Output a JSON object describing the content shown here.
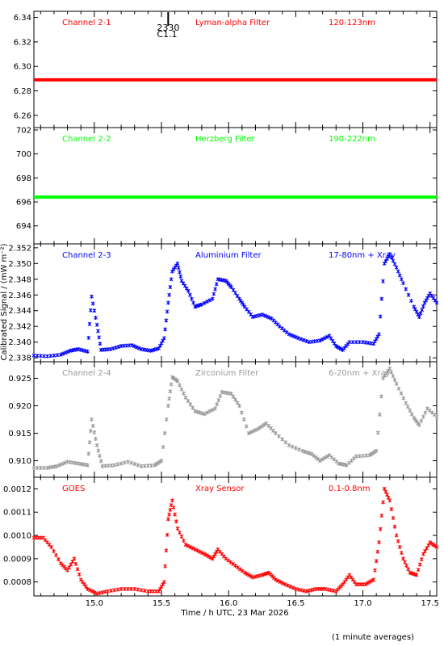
{
  "figure": {
    "ylabel": "Calibrated Signal / (mW m⁻²)",
    "xlabel": "Time / h UTC, 23 Mar 2026",
    "footnote": "(1 minute averages)",
    "annotation": {
      "line1": "2330",
      "line2": "C1.1",
      "x": 15.55
    }
  },
  "chart_data": [
    {
      "type": "scatter",
      "channel": "Channel 2-1",
      "filter": "Lyman-alpha Filter",
      "band": "120-123nm",
      "color": "#ff0000",
      "xlim": [
        14.55,
        17.55
      ],
      "ylim": [
        6.25,
        6.345
      ],
      "yticks": [
        "6.26",
        "6.28",
        "6.30",
        "6.32",
        "6.34"
      ],
      "xticks": [],
      "points": [
        [
          14.55,
          6.289
        ],
        [
          17.55,
          6.289
        ]
      ],
      "constant": true
    },
    {
      "type": "scatter",
      "channel": "Channel 2-2",
      "filter": "Herzberg Filter",
      "band": "190-222nm",
      "color": "#00ff00",
      "xlim": [
        14.55,
        17.55
      ],
      "ylim": [
        692.5,
        702.2
      ],
      "yticks": [
        "694",
        "696",
        "698",
        "700",
        "702"
      ],
      "xticks": [],
      "points": [
        [
          14.55,
          696.4
        ],
        [
          17.55,
          696.4
        ]
      ],
      "constant": true
    },
    {
      "type": "scatter",
      "channel": "Channel 2-3",
      "filter": "Aluminium Filter",
      "band": "17-80nm + Xray",
      "color": "#0000ff",
      "xlim": [
        14.55,
        17.55
      ],
      "ylim": [
        2.3375,
        2.3525
      ],
      "yticks": [
        "2.338",
        "2.340",
        "2.342",
        "2.344",
        "2.346",
        "2.348",
        "2.350",
        "2.352"
      ],
      "xticks": [],
      "points": [
        [
          14.55,
          2.3383
        ],
        [
          14.65,
          2.3382
        ],
        [
          14.75,
          2.3384
        ],
        [
          14.82,
          2.3389
        ],
        [
          14.88,
          2.3391
        ],
        [
          14.95,
          2.3388
        ],
        [
          14.98,
          2.3458
        ],
        [
          15.02,
          2.3422
        ],
        [
          15.05,
          2.339
        ],
        [
          15.12,
          2.3391
        ],
        [
          15.2,
          2.3395
        ],
        [
          15.28,
          2.3396
        ],
        [
          15.35,
          2.3391
        ],
        [
          15.42,
          2.3389
        ],
        [
          15.48,
          2.3392
        ],
        [
          15.52,
          2.3405
        ],
        [
          15.55,
          2.345
        ],
        [
          15.58,
          2.349
        ],
        [
          15.62,
          2.35
        ],
        [
          15.65,
          2.3478
        ],
        [
          15.7,
          2.3465
        ],
        [
          15.75,
          2.3445
        ],
        [
          15.8,
          2.3448
        ],
        [
          15.88,
          2.3455
        ],
        [
          15.92,
          2.348
        ],
        [
          15.98,
          2.3478
        ],
        [
          16.02,
          2.347
        ],
        [
          16.08,
          2.3455
        ],
        [
          16.12,
          2.3445
        ],
        [
          16.18,
          2.3432
        ],
        [
          16.25,
          2.3435
        ],
        [
          16.32,
          2.343
        ],
        [
          16.38,
          2.342
        ],
        [
          16.45,
          2.341
        ],
        [
          16.52,
          2.3405
        ],
        [
          16.6,
          2.34
        ],
        [
          16.68,
          2.3402
        ],
        [
          16.75,
          2.3408
        ],
        [
          16.8,
          2.3395
        ],
        [
          16.85,
          2.339
        ],
        [
          16.9,
          2.34
        ],
        [
          17.0,
          2.34
        ],
        [
          17.08,
          2.3398
        ],
        [
          17.12,
          2.341
        ],
        [
          17.16,
          2.35
        ],
        [
          17.2,
          2.3512
        ],
        [
          17.25,
          2.3495
        ],
        [
          17.3,
          2.3475
        ],
        [
          17.38,
          2.3445
        ],
        [
          17.42,
          2.3432
        ],
        [
          17.46,
          2.345
        ],
        [
          17.5,
          2.3462
        ],
        [
          17.55,
          2.345
        ]
      ]
    },
    {
      "type": "scatter",
      "channel": "Channel 2-4",
      "filter": "Zirconium Filter",
      "band": "6-20nm + Xray",
      "color": "#999999",
      "xlim": [
        14.55,
        17.55
      ],
      "ylim": [
        0.907,
        0.928
      ],
      "yticks": [
        "0.910",
        "0.915",
        "0.920",
        "0.925"
      ],
      "xticks": [],
      "points": [
        [
          14.55,
          0.9087
        ],
        [
          14.65,
          0.9087
        ],
        [
          14.72,
          0.909
        ],
        [
          14.8,
          0.9098
        ],
        [
          14.88,
          0.9095
        ],
        [
          14.95,
          0.9092
        ],
        [
          14.98,
          0.9175
        ],
        [
          15.02,
          0.9128
        ],
        [
          15.06,
          0.909
        ],
        [
          15.15,
          0.9092
        ],
        [
          15.25,
          0.9098
        ],
        [
          15.35,
          0.909
        ],
        [
          15.45,
          0.9092
        ],
        [
          15.5,
          0.91
        ],
        [
          15.55,
          0.92
        ],
        [
          15.58,
          0.9252
        ],
        [
          15.62,
          0.9245
        ],
        [
          15.68,
          0.9215
        ],
        [
          15.75,
          0.919
        ],
        [
          15.82,
          0.9185
        ],
        [
          15.9,
          0.9195
        ],
        [
          15.95,
          0.9225
        ],
        [
          16.02,
          0.9222
        ],
        [
          16.08,
          0.92
        ],
        [
          16.15,
          0.915
        ],
        [
          16.22,
          0.9158
        ],
        [
          16.28,
          0.9168
        ],
        [
          16.35,
          0.915
        ],
        [
          16.45,
          0.9128
        ],
        [
          16.55,
          0.9118
        ],
        [
          16.62,
          0.9112
        ],
        [
          16.68,
          0.91
        ],
        [
          16.75,
          0.911
        ],
        [
          16.82,
          0.9095
        ],
        [
          16.88,
          0.9092
        ],
        [
          16.95,
          0.9108
        ],
        [
          17.05,
          0.911
        ],
        [
          17.1,
          0.9118
        ],
        [
          17.15,
          0.925
        ],
        [
          17.2,
          0.9268
        ],
        [
          17.25,
          0.924
        ],
        [
          17.32,
          0.9205
        ],
        [
          17.38,
          0.9178
        ],
        [
          17.42,
          0.9165
        ],
        [
          17.48,
          0.9195
        ],
        [
          17.55,
          0.918
        ]
      ]
    },
    {
      "type": "scatter",
      "channel": "GOES",
      "filter": "Xray Sensor",
      "band": "0.1-0.8nm",
      "color": "#ff0000",
      "xlim": [
        14.55,
        17.55
      ],
      "ylim": [
        0.00074,
        0.00125
      ],
      "yticks": [
        "0.0008",
        "0.0009",
        "0.0010",
        "0.0011",
        "0.0012"
      ],
      "xticks": [
        "15.0",
        "15.5",
        "16.0",
        "16.5",
        "17.0",
        "17.5"
      ],
      "xtick_values": [
        15.0,
        15.5,
        16.0,
        16.5,
        17.0,
        17.5
      ],
      "points": [
        [
          14.55,
          0.00099
        ],
        [
          14.62,
          0.00099
        ],
        [
          14.68,
          0.00095
        ],
        [
          14.75,
          0.00088
        ],
        [
          14.8,
          0.00085
        ],
        [
          14.85,
          0.0009
        ],
        [
          14.9,
          0.00081
        ],
        [
          14.95,
          0.00077
        ],
        [
          15.02,
          0.00075
        ],
        [
          15.1,
          0.00076
        ],
        [
          15.2,
          0.00077
        ],
        [
          15.3,
          0.00077
        ],
        [
          15.4,
          0.00076
        ],
        [
          15.48,
          0.00076
        ],
        [
          15.52,
          0.0008
        ],
        [
          15.55,
          0.00107
        ],
        [
          15.58,
          0.00115
        ],
        [
          15.62,
          0.00103
        ],
        [
          15.68,
          0.00096
        ],
        [
          15.75,
          0.00094
        ],
        [
          15.82,
          0.00092
        ],
        [
          15.88,
          0.0009
        ],
        [
          15.92,
          0.00094
        ],
        [
          15.98,
          0.0009
        ],
        [
          16.05,
          0.00087
        ],
        [
          16.12,
          0.00084
        ],
        [
          16.18,
          0.00082
        ],
        [
          16.25,
          0.00083
        ],
        [
          16.3,
          0.00084
        ],
        [
          16.35,
          0.00081
        ],
        [
          16.42,
          0.00079
        ],
        [
          16.5,
          0.00077
        ],
        [
          16.58,
          0.00076
        ],
        [
          16.65,
          0.00077
        ],
        [
          16.72,
          0.00077
        ],
        [
          16.8,
          0.00076
        ],
        [
          16.85,
          0.00079
        ],
        [
          16.9,
          0.00083
        ],
        [
          16.95,
          0.00079
        ],
        [
          17.02,
          0.00079
        ],
        [
          17.08,
          0.00081
        ],
        [
          17.12,
          0.00097
        ],
        [
          17.16,
          0.0012
        ],
        [
          17.2,
          0.00115
        ],
        [
          17.25,
          0.001
        ],
        [
          17.3,
          0.0009
        ],
        [
          17.35,
          0.00084
        ],
        [
          17.4,
          0.00083
        ],
        [
          17.45,
          0.00092
        ],
        [
          17.5,
          0.00097
        ],
        [
          17.55,
          0.00095
        ]
      ]
    }
  ]
}
